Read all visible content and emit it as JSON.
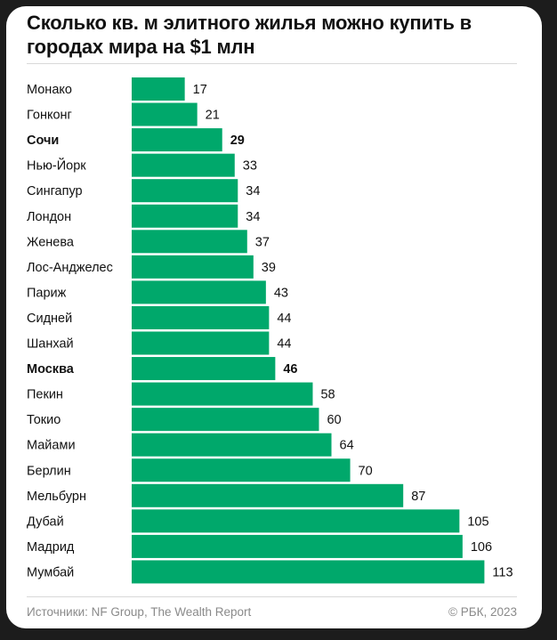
{
  "title": "Сколько кв. м элитного жилья можно купить в городах мира на $1 млн",
  "footer": {
    "source": "Источники: NF Group, The Wealth Report",
    "copyright": "© РБК, 2023"
  },
  "colors": {
    "bar": "#00a86b",
    "text": "#111111",
    "muted": "#8a8a8a"
  },
  "chart_data": {
    "type": "bar",
    "orientation": "horizontal",
    "categories": [
      "Монако",
      "Гонконг",
      "Сочи",
      "Нью-Йорк",
      "Сингапур",
      "Лондон",
      "Женева",
      "Лос-Анджелес",
      "Париж",
      "Сидней",
      "Шанхай",
      "Москва",
      "Пекин",
      "Токио",
      "Майами",
      "Берлин",
      "Мельбурн",
      "Дубай",
      "Мадрид",
      "Мумбай"
    ],
    "values": [
      17,
      21,
      29,
      33,
      34,
      34,
      37,
      39,
      43,
      44,
      44,
      46,
      58,
      60,
      64,
      70,
      87,
      105,
      106,
      113
    ],
    "highlighted": [
      "Сочи",
      "Москва"
    ],
    "grid": false,
    "legend": "none"
  }
}
